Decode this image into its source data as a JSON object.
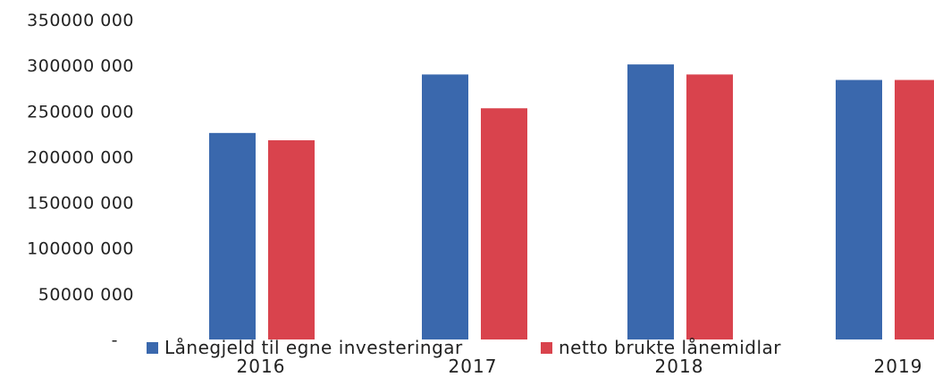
{
  "chart_data": {
    "type": "bar",
    "title": "",
    "xlabel": "",
    "ylabel": "",
    "categories": [
      "2016",
      "2017",
      "2018",
      "2019"
    ],
    "series": [
      {
        "name": "Lånegjeld til egne investeringar",
        "color": "#3a68ad",
        "values": [
          226000000,
          290000000,
          301000000,
          284000000
        ]
      },
      {
        "name": "netto brukte lånemidlar",
        "color": "#d9434d",
        "values": [
          218000000,
          253000000,
          290000000,
          284000000
        ]
      }
    ],
    "ylim": [
      0,
      350000000
    ],
    "yticks": [
      0,
      50000000,
      100000000,
      150000000,
      200000000,
      250000000,
      300000000,
      350000000
    ],
    "ytick_labels": [
      "-",
      "50000 000",
      "100000 000",
      "150000 000",
      "200000 000",
      "250000 000",
      "300000 000",
      "350000 000"
    ],
    "grid": false,
    "legend_position": "bottom"
  }
}
